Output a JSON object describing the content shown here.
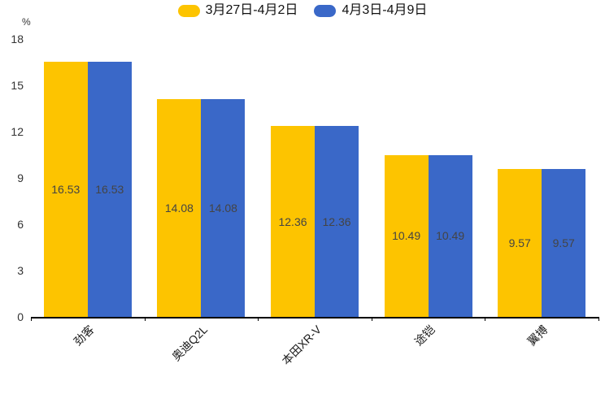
{
  "chart_data": {
    "type": "bar",
    "title": "",
    "ylabel": "%",
    "categories": [
      "劲客",
      "奥迪Q2L",
      "本田XR-V",
      "途铠",
      "翼搏"
    ],
    "series": [
      {
        "name": "3月27日-4月2日",
        "color": "#FDC400",
        "values": [
          16.53,
          14.08,
          12.36,
          10.49,
          9.57
        ]
      },
      {
        "name": "4月3日-4月9日",
        "color": "#3A68C8",
        "values": [
          16.53,
          14.08,
          12.36,
          10.49,
          9.57
        ]
      }
    ],
    "ylim": [
      0,
      18
    ],
    "yticks": [
      0,
      3,
      6,
      9,
      12,
      15,
      18
    ],
    "grid": false,
    "legend_position": "top",
    "bar_labels_visible": true,
    "bar_label_format": "2-decimals",
    "colors": {
      "axis_line": "#000000",
      "tick_label": "#333333",
      "bar_label": "#444444",
      "x_label": "#1a1a1a",
      "background": "#ffffff"
    }
  }
}
